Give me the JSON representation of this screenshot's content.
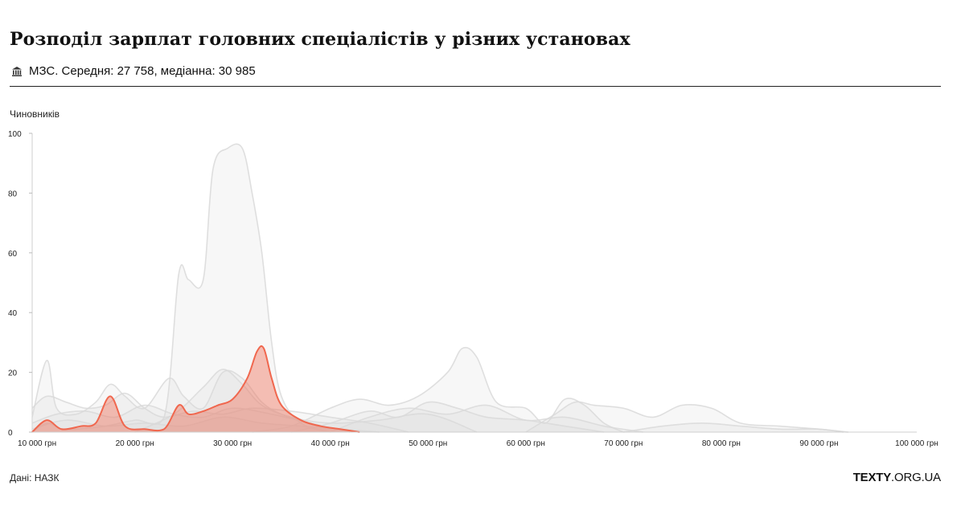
{
  "header": {
    "title": "Розподіл зарплат головних спеціалістів у різних установах",
    "subtitle": "МЗС. Середня: 27 758, медіанна: 30 985",
    "icon": "bank-icon"
  },
  "footer": {
    "source": "Дані: НАЗК",
    "brand_bold": "TEXTY",
    "brand_rest": ".ORG.UA"
  },
  "chart_data": {
    "type": "area",
    "ylabel": "Чиновників",
    "ylim": [
      0,
      100
    ],
    "yticks": [
      0,
      20,
      40,
      60,
      80,
      100
    ],
    "xlim": [
      10000,
      100000
    ],
    "xticks": [
      {
        "value": 10000,
        "label": "10 000 грн"
      },
      {
        "value": 20000,
        "label": "20 000 грн"
      },
      {
        "value": 30000,
        "label": "30 000 грн"
      },
      {
        "value": 40000,
        "label": "40 000 грн"
      },
      {
        "value": 50000,
        "label": "50 000 грн"
      },
      {
        "value": 60000,
        "label": "60 000 грн"
      },
      {
        "value": 70000,
        "label": "70 000 грн"
      },
      {
        "value": 80000,
        "label": "80 000 грн"
      },
      {
        "value": 90000,
        "label": "90 000 грн"
      },
      {
        "value": 100000,
        "label": "100 000 грн"
      }
    ],
    "highlight_color": "#f0674e",
    "background_color": "#d9d9d9",
    "highlight": {
      "x": [
        9500,
        11000,
        12500,
        14500,
        16000,
        17500,
        19000,
        21000,
        23000,
        24500,
        25500,
        27000,
        28500,
        30000,
        31500,
        32500,
        33200,
        34000,
        35000,
        37000,
        39000,
        41000,
        43000
      ],
      "y": [
        0,
        4,
        1,
        2,
        3,
        12,
        2,
        1,
        1,
        9,
        6,
        7,
        9,
        11,
        18,
        27,
        28,
        18,
        9,
        4,
        2,
        1,
        0
      ]
    },
    "background_series": [
      {
        "x": [
          9500,
          11000,
          12500,
          14000,
          17000,
          20000,
          23000,
          24500,
          25500,
          27000,
          28000,
          29500,
          31000,
          32000,
          33000,
          34000,
          35000,
          37000,
          40000
        ],
        "y": [
          0,
          3,
          1,
          1,
          2,
          4,
          5,
          53,
          51,
          51,
          88,
          95,
          95,
          80,
          60,
          30,
          12,
          3,
          0
        ]
      },
      {
        "x": [
          9500,
          11000,
          12000,
          14000,
          16000,
          17500,
          19000,
          21000,
          23500,
          25000,
          27000,
          29000,
          31000,
          33000,
          35000,
          38000,
          42000
        ],
        "y": [
          5,
          24,
          8,
          6,
          10,
          16,
          12,
          8,
          18,
          12,
          8,
          20,
          18,
          10,
          6,
          3,
          0
        ]
      },
      {
        "x": [
          9500,
          11000,
          13000,
          15000,
          17000,
          19000,
          21000,
          23000,
          26000,
          29000,
          32000,
          36000,
          40000,
          44000,
          48000
        ],
        "y": [
          8,
          12,
          10,
          8,
          9,
          13,
          8,
          5,
          7,
          6,
          8,
          7,
          5,
          3,
          0
        ]
      },
      {
        "x": [
          32000,
          36000,
          40000,
          43000,
          46000,
          49000,
          52000,
          53500,
          55000,
          57000,
          60000,
          62000,
          64000,
          66000,
          68000,
          70000
        ],
        "y": [
          0,
          2,
          8,
          11,
          9,
          12,
          20,
          28,
          25,
          10,
          8,
          3,
          11,
          9,
          3,
          0
        ]
      },
      {
        "x": [
          60000,
          63000,
          65000,
          67000,
          70000,
          73000,
          76000,
          79000,
          82000,
          86000,
          90000,
          93000
        ],
        "y": [
          0,
          6,
          10,
          9,
          8,
          5,
          9,
          8,
          3,
          2,
          1,
          0
        ]
      },
      {
        "x": [
          36000,
          40000,
          44000,
          47000,
          50000,
          53000,
          56000,
          60000,
          64000,
          68000
        ],
        "y": [
          0,
          3,
          7,
          5,
          10,
          8,
          5,
          4,
          2,
          0
        ]
      },
      {
        "x": [
          9500,
          12000,
          15000,
          18000,
          21000,
          24000,
          27000,
          30000,
          34000,
          38000,
          42000
        ],
        "y": [
          3,
          6,
          7,
          5,
          9,
          6,
          5,
          8,
          6,
          3,
          0
        ]
      },
      {
        "x": [
          20000,
          24000,
          27000,
          29000,
          31000,
          33000,
          36000,
          40000,
          45000,
          50000,
          55000
        ],
        "y": [
          0,
          6,
          15,
          21,
          16,
          9,
          5,
          3,
          4,
          6,
          0
        ]
      },
      {
        "x": [
          40000,
          44000,
          48000,
          52000,
          56000,
          60000,
          64000,
          68000,
          72000
        ],
        "y": [
          0,
          5,
          8,
          6,
          9,
          4,
          5,
          2,
          0
        ]
      },
      {
        "x": [
          9500,
          13000,
          17000,
          21000,
          25000,
          29000,
          33000,
          37000,
          41000,
          45000
        ],
        "y": [
          1,
          4,
          2,
          3,
          2,
          5,
          3,
          2,
          1,
          0
        ]
      },
      {
        "x": [
          70000,
          74000,
          78000,
          82000,
          86000,
          90000,
          92500
        ],
        "y": [
          0,
          2,
          3,
          2,
          1,
          1,
          0
        ]
      }
    ]
  }
}
